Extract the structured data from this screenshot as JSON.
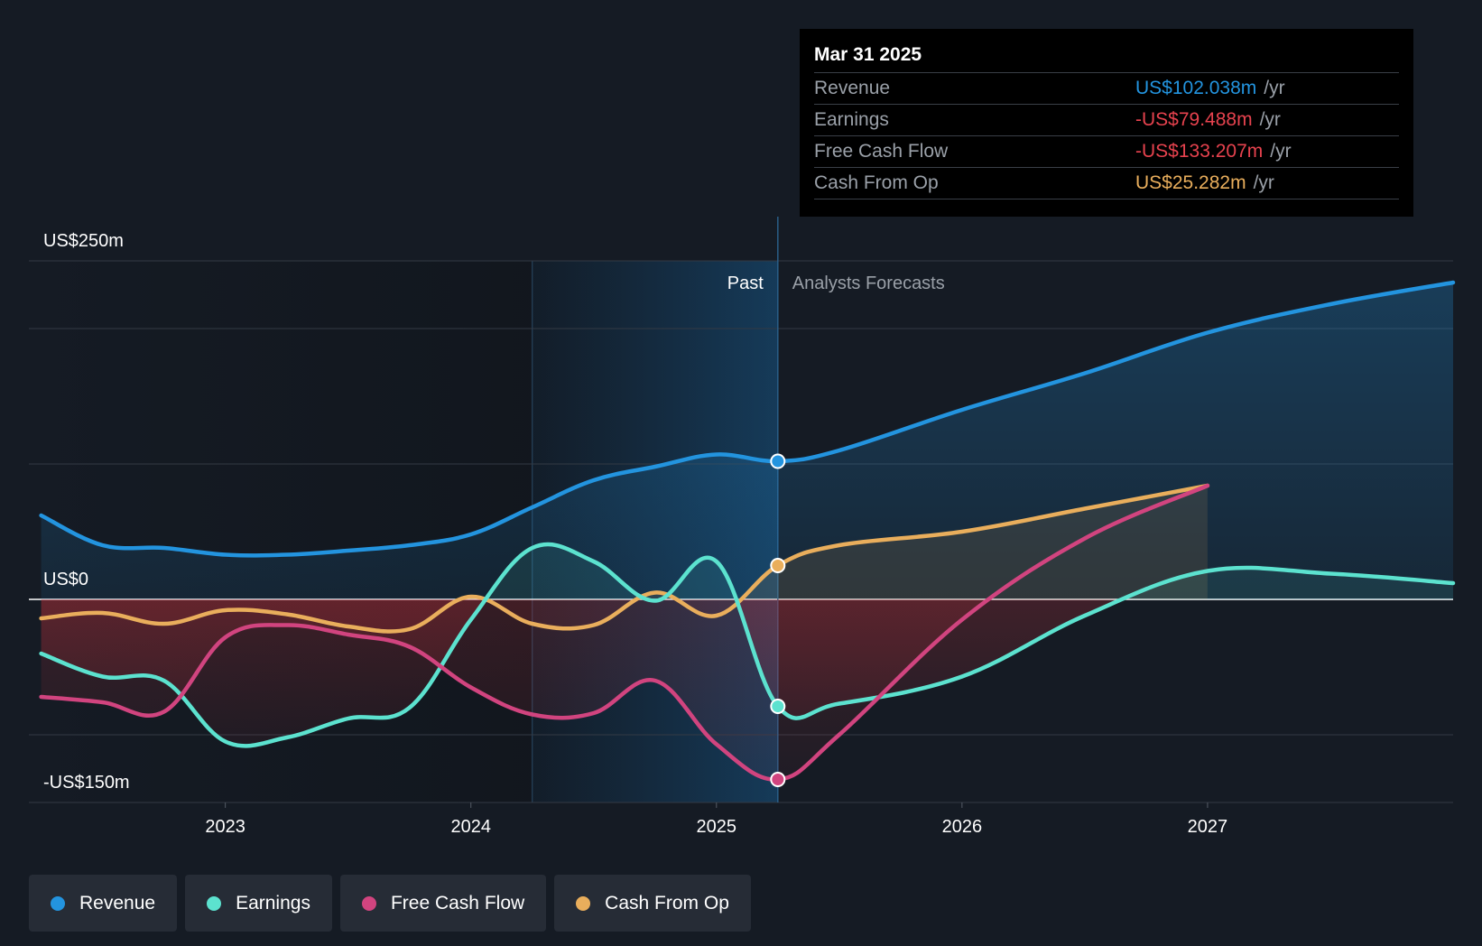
{
  "colors": {
    "revenue": "#2394df",
    "earnings": "#5ce2cf",
    "fcf": "#d1447f",
    "cfo": "#e9ae5c",
    "negative": "#e6424e",
    "background": "#151b24"
  },
  "tooltip": {
    "date": "Mar 31 2025",
    "rows": [
      {
        "label": "Revenue",
        "value": "US$102.038m",
        "unit": "/yr",
        "color": "#2394df"
      },
      {
        "label": "Earnings",
        "value": "-US$79.488m",
        "unit": "/yr",
        "color": "#e6424e"
      },
      {
        "label": "Free Cash Flow",
        "value": "-US$133.207m",
        "unit": "/yr",
        "color": "#e6424e"
      },
      {
        "label": "Cash From Op",
        "value": "US$25.282m",
        "unit": "/yr",
        "color": "#e9ae5c"
      }
    ]
  },
  "labels": {
    "past": "Past",
    "forecast": "Analysts Forecasts"
  },
  "legend": [
    {
      "label": "Revenue",
      "color": "#2394df"
    },
    {
      "label": "Earnings",
      "color": "#5ce2cf"
    },
    {
      "label": "Free Cash Flow",
      "color": "#d1447f"
    },
    {
      "label": "Cash From Op",
      "color": "#e9ae5c"
    }
  ],
  "chart_data": {
    "type": "line",
    "title": "",
    "xlabel": "",
    "ylabel": "",
    "ylim": [
      -150,
      250
    ],
    "xlim": [
      2022.2,
      2028.0
    ],
    "y_tick_labels": [
      {
        "value": 250,
        "label": "US$250m"
      },
      {
        "value": 0,
        "label": "US$0"
      },
      {
        "value": -150,
        "label": "-US$150m"
      }
    ],
    "gridlines": [
      250,
      200,
      100,
      0,
      -100,
      -150
    ],
    "x_ticks": [
      {
        "value": 2023,
        "label": "2023"
      },
      {
        "value": 2024,
        "label": "2024"
      },
      {
        "value": 2025,
        "label": "2025"
      },
      {
        "value": 2026,
        "label": "2026"
      },
      {
        "value": 2027,
        "label": "2027"
      }
    ],
    "highlight_start": 2024.25,
    "past_end": 2025.25,
    "series": [
      {
        "name": "Revenue",
        "key": "revenue",
        "fill": "positive",
        "x": [
          2022.25,
          2022.5,
          2022.75,
          2023.0,
          2023.25,
          2023.5,
          2023.75,
          2024.0,
          2024.25,
          2024.5,
          2024.75,
          2025.0,
          2025.25,
          2025.5,
          2026.0,
          2026.5,
          2027.0,
          2027.5,
          2028.0
        ],
        "y": [
          62,
          40,
          38,
          33,
          33,
          36,
          40,
          48,
          68,
          88,
          98,
          107,
          102,
          110,
          140,
          167,
          197,
          218,
          234
        ]
      },
      {
        "name": "Earnings",
        "key": "earnings",
        "fill": "negative",
        "x": [
          2022.25,
          2022.5,
          2022.75,
          2023.0,
          2023.25,
          2023.5,
          2023.75,
          2024.0,
          2024.25,
          2024.5,
          2024.75,
          2025.0,
          2025.25,
          2025.5,
          2026.0,
          2026.5,
          2027.0,
          2027.5,
          2028.0
        ],
        "y": [
          -40,
          -57,
          -60,
          -105,
          -102,
          -88,
          -80,
          -15,
          38,
          28,
          -1,
          28,
          -79,
          -77,
          -57,
          -12,
          21,
          19,
          12
        ]
      },
      {
        "name": "Free Cash Flow",
        "key": "fcf",
        "fill": "negative",
        "x": [
          2022.25,
          2022.5,
          2022.75,
          2023.0,
          2023.25,
          2023.5,
          2023.75,
          2024.0,
          2024.25,
          2024.5,
          2024.75,
          2025.0,
          2025.25,
          2025.5,
          2026.0,
          2026.5,
          2027.0
        ],
        "y": [
          -72,
          -76,
          -83,
          -28,
          -19,
          -26,
          -35,
          -65,
          -85,
          -84,
          -60,
          -107,
          -133,
          -100,
          -15,
          45,
          84
        ]
      },
      {
        "name": "Cash From Op",
        "key": "cfo",
        "fill": "both",
        "x": [
          2022.25,
          2022.5,
          2022.75,
          2023.0,
          2023.25,
          2023.5,
          2023.75,
          2024.0,
          2024.25,
          2024.5,
          2024.75,
          2025.0,
          2025.25,
          2025.5,
          2026.0,
          2026.5,
          2027.0
        ],
        "y": [
          -14,
          -10,
          -18,
          -8,
          -11,
          -20,
          -22,
          2,
          -18,
          -19,
          5,
          -12,
          25,
          40,
          50,
          67,
          84
        ]
      }
    ]
  }
}
